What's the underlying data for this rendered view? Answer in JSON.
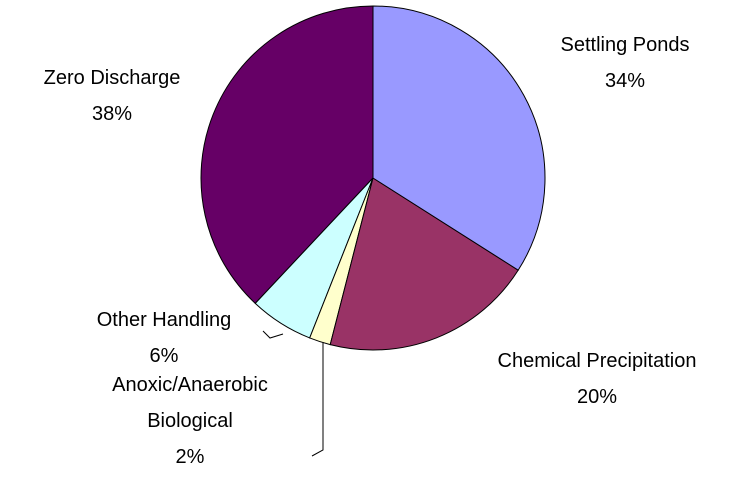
{
  "chart_data": {
    "type": "pie",
    "categories": [
      "Settling Ponds",
      "Chemical Precipitation",
      "Anoxic/Anaerobic Biological",
      "Other Handling",
      "Zero Discharge"
    ],
    "values": [
      34,
      20,
      2,
      6,
      38
    ],
    "value_labels": [
      "34%",
      "20%",
      "2%",
      "6%",
      "38%"
    ],
    "colors": [
      "#9999ff",
      "#993366",
      "#ffffcc",
      "#ccffff",
      "#660066"
    ]
  }
}
